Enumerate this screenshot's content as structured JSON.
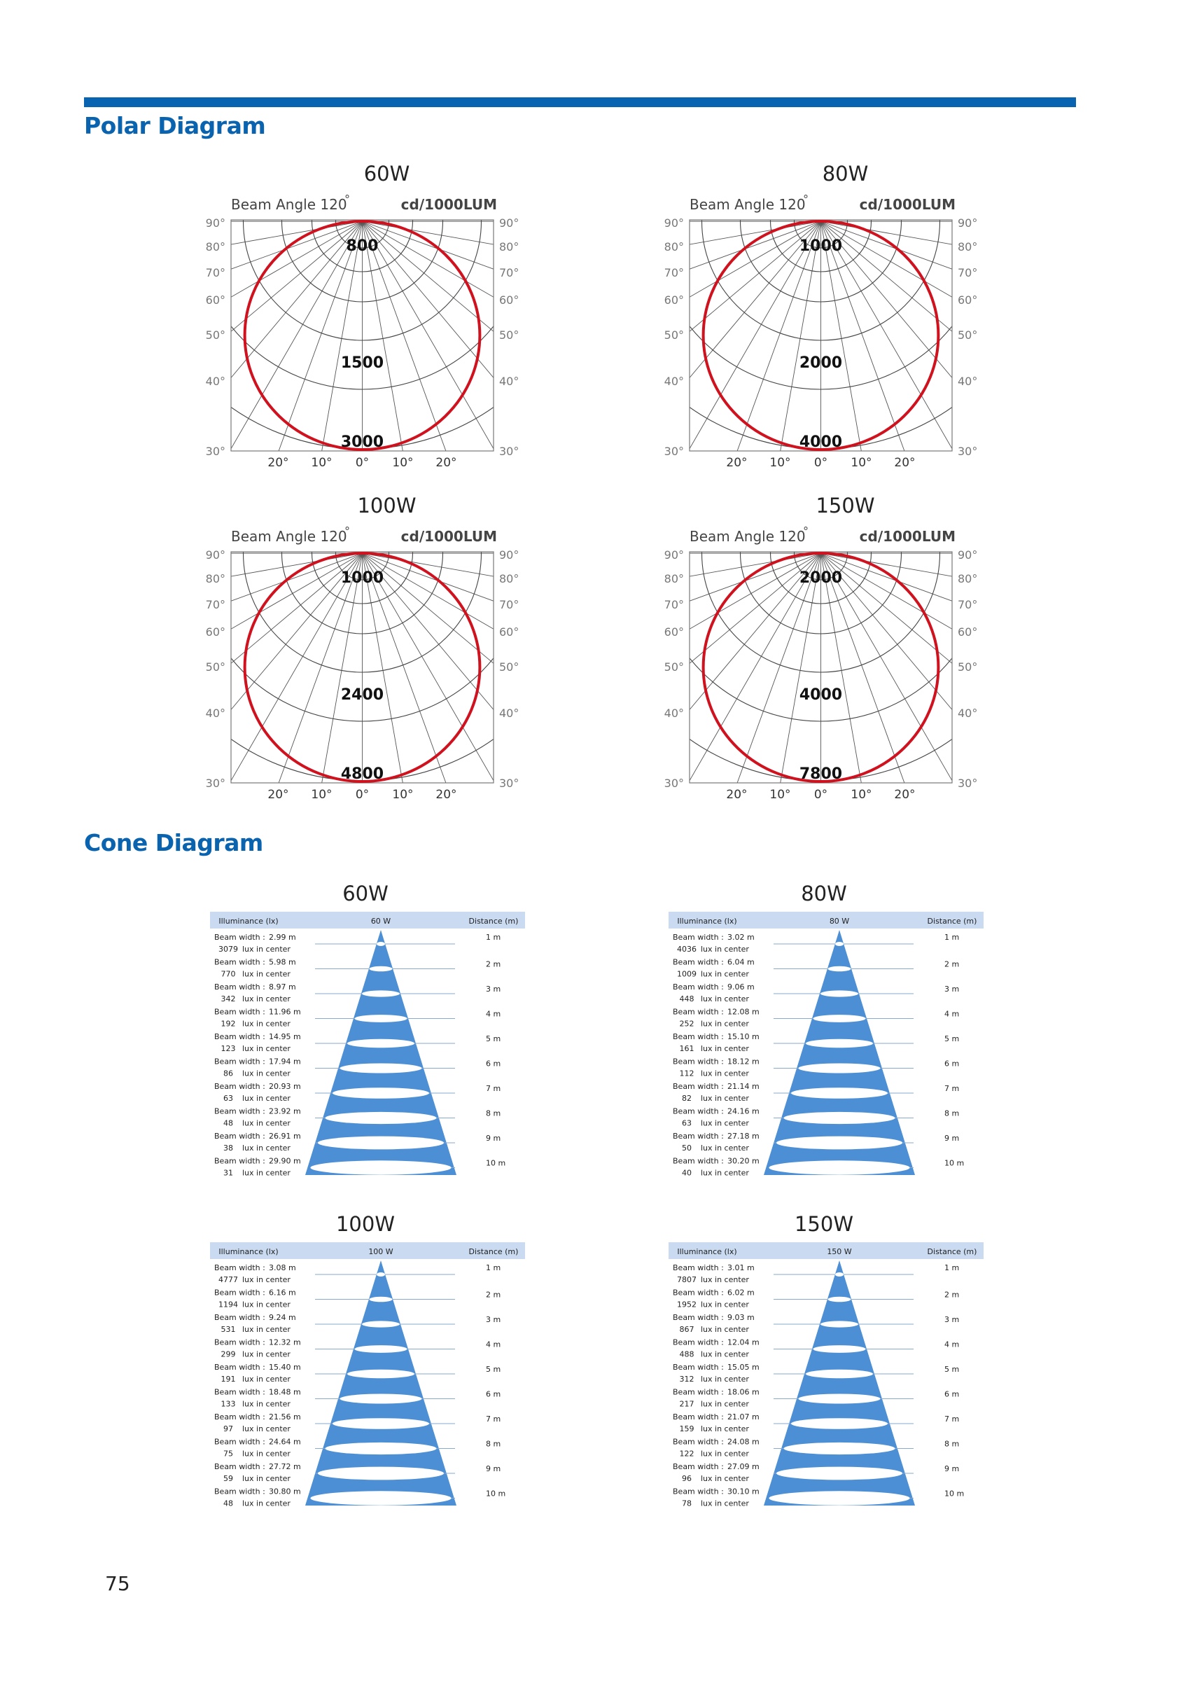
{
  "sections": {
    "polar_title": "Polar Diagram",
    "cone_title": "Cone Diagram"
  },
  "page_number": "75",
  "colors": {
    "brand_blue": "#0863b0",
    "curve_red": "#d0121f",
    "cone_blue": "#4d8fd4",
    "header_blue": "#c9daf1"
  },
  "polar_diagrams": [
    {
      "title": "60W",
      "beam_label": "Beam Angle 120",
      "degree_mark": "°",
      "unit": "cd/1000LUM",
      "values": [
        "800",
        "1500",
        "3000"
      ]
    },
    {
      "title": "80W",
      "beam_label": "Beam Angle 120",
      "degree_mark": "°",
      "unit": "cd/1000LUM",
      "values": [
        "1000",
        "2000",
        "4000"
      ]
    },
    {
      "title": "100W",
      "beam_label": "Beam Angle 120",
      "degree_mark": "°",
      "unit": "cd/1000LUM",
      "values": [
        "1000",
        "2400",
        "4800"
      ]
    },
    {
      "title": "150W",
      "beam_label": "Beam Angle 120",
      "degree_mark": "°",
      "unit": "cd/1000LUM",
      "values": [
        "2000",
        "4000",
        "7800"
      ]
    }
  ],
  "polar_axis": {
    "left_labels": [
      "90°",
      "80°",
      "70°",
      "60°",
      "50°",
      "40°",
      "30°"
    ],
    "bottom_labels": [
      "20°",
      "10°",
      "0°",
      "10°",
      "20°"
    ]
  },
  "cone_common": {
    "illuminance_header": "Illuminance (lx)",
    "distance_header": "Distance (m)",
    "beam_prefix": "Beam width :",
    "lux_suffix": "lux in center",
    "distances": [
      "1 m",
      "2 m",
      "3 m",
      "4 m",
      "5 m",
      "6 m",
      "7 m",
      "8 m",
      "9 m",
      "10 m"
    ]
  },
  "cone_diagrams": [
    {
      "title": "60W",
      "header": "60 W",
      "beam_widths": [
        "2.99 m",
        "5.98 m",
        "8.97 m",
        "11.96 m",
        "14.95 m",
        "17.94 m",
        "20.93 m",
        "23.92 m",
        "26.91 m",
        "29.90 m"
      ],
      "lux": [
        "3079",
        "770",
        "342",
        "192",
        "123",
        "86",
        "63",
        "48",
        "38",
        "31"
      ]
    },
    {
      "title": "80W",
      "header": "80 W",
      "beam_widths": [
        "3.02 m",
        "6.04 m",
        "9.06 m",
        "12.08 m",
        "15.10 m",
        "18.12 m",
        "21.14 m",
        "24.16 m",
        "27.18 m",
        "30.20 m"
      ],
      "lux": [
        "4036",
        "1009",
        "448",
        "252",
        "161",
        "112",
        "82",
        "63",
        "50",
        "40"
      ]
    },
    {
      "title": "100W",
      "header": "100 W",
      "beam_widths": [
        "3.08 m",
        "6.16 m",
        "9.24 m",
        "12.32 m",
        "15.40 m",
        "18.48 m",
        "21.56 m",
        "24.64 m",
        "27.72 m",
        "30.80 m"
      ],
      "lux": [
        "4777",
        "1194",
        "531",
        "299",
        "191",
        "133",
        "97",
        "75",
        "59",
        "48"
      ]
    },
    {
      "title": "150W",
      "header": "150 W",
      "beam_widths": [
        "3.01 m",
        "6.02 m",
        "9.03 m",
        "12.04 m",
        "15.05 m",
        "18.06 m",
        "21.07 m",
        "24.08 m",
        "27.09 m",
        "30.10 m"
      ],
      "lux": [
        "7807",
        "1952",
        "867",
        "488",
        "312",
        "217",
        "159",
        "122",
        "96",
        "78"
      ]
    }
  ]
}
